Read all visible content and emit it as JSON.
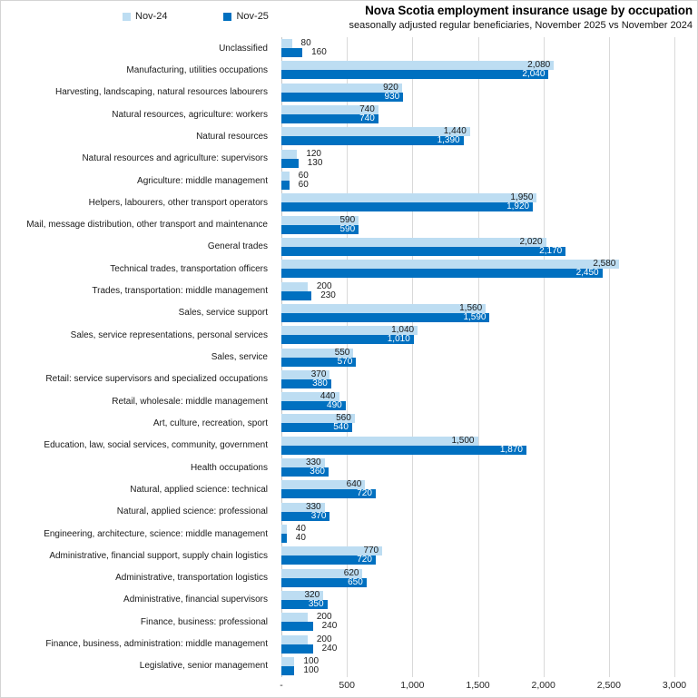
{
  "title": "Nova Scotia employment insurance usage by occupation",
  "subtitle": "seasonally adjusted regular beneficiaries, November 2025 vs November 2024",
  "legend": {
    "items": [
      {
        "label": "Nov-24",
        "color": "#BDDDF2"
      },
      {
        "label": "Nov-25",
        "color": "#0070C0"
      }
    ]
  },
  "colors": {
    "series_light": "#BDDDF2",
    "series_dark": "#0070C0",
    "gridline": "#D9D9D9",
    "label_inside_light": "#1A1A1A",
    "label_inside_dark": "#FFFFFF",
    "label_outside": "#1A1A1A"
  },
  "chart_data": {
    "type": "bar",
    "orientation": "horizontal",
    "title": "Nova Scotia employment insurance usage by occupation",
    "subtitle": "seasonally adjusted regular beneficiaries, November 2025 vs November 2024",
    "xlabel": "",
    "ylabel": "",
    "xlim": [
      0,
      3000
    ],
    "grid": true,
    "legend_position": "top-left",
    "x_ticks": [
      {
        "label": "-",
        "value": 0
      },
      {
        "label": "500",
        "value": 500
      },
      {
        "label": "1,000",
        "value": 1000
      },
      {
        "label": "1,500",
        "value": 1500
      },
      {
        "label": "2,000",
        "value": 2000
      },
      {
        "label": "2,500",
        "value": 2500
      },
      {
        "label": "3,000",
        "value": 3000
      }
    ],
    "categories": [
      "Unclassified",
      "Manufacturing, utilities occupations",
      "Harvesting, landscaping, natural resources labourers",
      "Natural resources, agriculture: workers",
      "Natural resources",
      "Natural resources and agriculture: supervisors",
      "Agriculture: middle management",
      "Helpers, labourers, other transport operators",
      "Mail, message distribution, other transport and maintenance",
      "General trades",
      "Technical trades, transportation officers",
      "Trades, transportation: middle management",
      "Sales, service support",
      "Sales, service representations, personal services",
      "Sales, service",
      "Retail: service supervisors and specialized occupations",
      "Retail, wholesale: middle management",
      "Art, culture, recreation, sport",
      "Education, law, social services, community, government",
      "Health occupations",
      "Natural, applied science: technical",
      "Natural, applied science: professional",
      "Engineering, architecture, science: middle management",
      "Administrative, financial support, supply chain logistics",
      "Administrative, transportation logistics",
      "Administrative, financial supervisors",
      "Finance, business: professional",
      "Finance, business, administration: middle management",
      "Legislative, senior management"
    ],
    "series": [
      {
        "name": "Nov-24",
        "color": "#BDDDF2",
        "values": [
          80,
          2080,
          920,
          740,
          1440,
          120,
          60,
          1950,
          590,
          2020,
          2580,
          200,
          1560,
          1040,
          550,
          370,
          440,
          560,
          1500,
          330,
          640,
          330,
          40,
          770,
          620,
          320,
          200,
          200,
          100
        ]
      },
      {
        "name": "Nov-25",
        "color": "#0070C0",
        "values": [
          160,
          2040,
          930,
          740,
          1390,
          130,
          60,
          1920,
          590,
          2170,
          2450,
          230,
          1590,
          1010,
          570,
          380,
          490,
          540,
          1870,
          360,
          720,
          370,
          40,
          720,
          650,
          350,
          240,
          240,
          100
        ]
      }
    ]
  }
}
